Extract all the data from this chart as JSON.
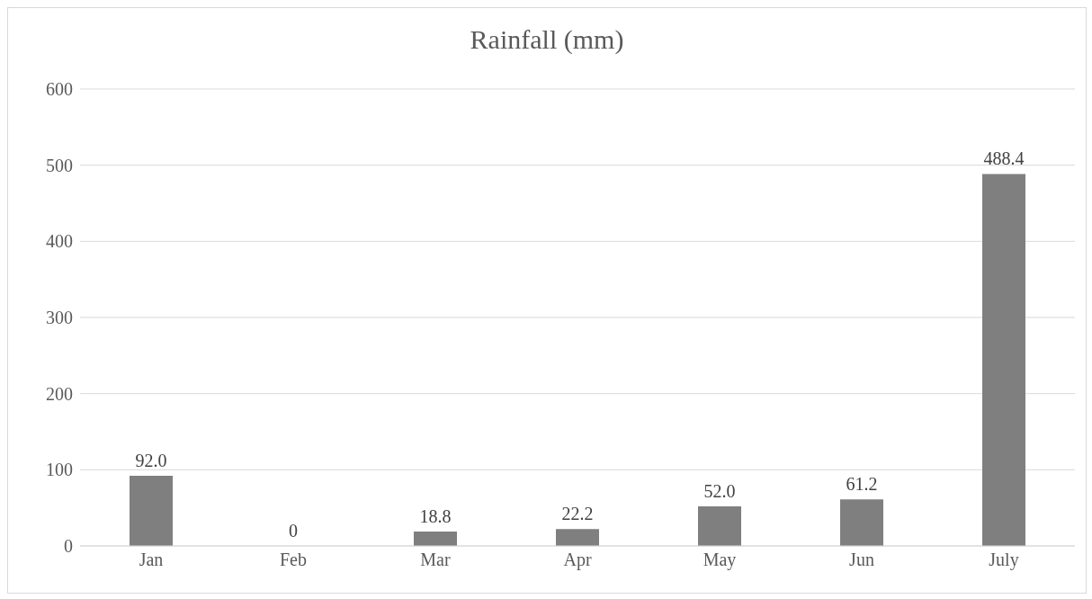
{
  "chart_data": {
    "type": "bar",
    "title": "Rainfall (mm)",
    "categories": [
      "Jan",
      "Feb",
      "Mar",
      "Apr",
      "May",
      "Jun",
      "July"
    ],
    "values": [
      92.0,
      0,
      18.8,
      22.2,
      52.0,
      61.2,
      488.4
    ],
    "value_labels": [
      "92.0",
      "0",
      "18.8",
      "22.2",
      "52.0",
      "61.2",
      "488.4"
    ],
    "color": "#7f7f7f",
    "ylim": [
      0,
      600
    ],
    "yticks": [
      0,
      100,
      200,
      300,
      400,
      500,
      600
    ],
    "grid": "y"
  }
}
